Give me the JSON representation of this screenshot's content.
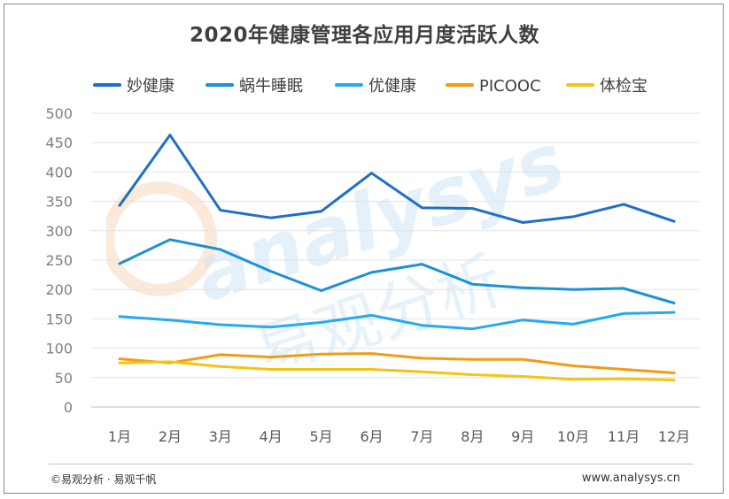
{
  "chart_data": {
    "type": "line",
    "title": "2020年健康管理各应用月度活跃人数",
    "categories": [
      "1月",
      "2月",
      "3月",
      "4月",
      "5月",
      "6月",
      "7月",
      "8月",
      "9月",
      "10月",
      "11月",
      "12月"
    ],
    "ylim": [
      0,
      500
    ],
    "yticks": [
      0,
      50,
      100,
      150,
      200,
      250,
      300,
      350,
      400,
      450,
      500
    ],
    "grid": true,
    "legend_position": "top",
    "series": [
      {
        "name": "妙健康",
        "color": "#1f6fc6",
        "values": [
          343,
          463,
          335,
          322,
          333,
          398,
          339,
          338,
          314,
          324,
          345,
          316
        ]
      },
      {
        "name": "蜗牛睡眠",
        "color": "#1b91d6",
        "values": [
          244,
          285,
          268,
          231,
          198,
          229,
          243,
          209,
          203,
          200,
          202,
          177
        ]
      },
      {
        "name": "优健康",
        "color": "#26aaf0",
        "values": [
          154,
          148,
          140,
          136,
          144,
          156,
          139,
          133,
          148,
          141,
          159,
          161
        ]
      },
      {
        "name": "PICOOC",
        "color": "#f29c13",
        "values": [
          82,
          75,
          89,
          85,
          90,
          91,
          83,
          81,
          81,
          70,
          64,
          58
        ]
      },
      {
        "name": "体检宝",
        "color": "#f5c316",
        "values": [
          75,
          77,
          69,
          64,
          64,
          64,
          60,
          55,
          52,
          47,
          48,
          46
        ]
      }
    ]
  },
  "watermark": {
    "text_en": "analysys",
    "text_cn": "易观分析",
    "color": "#cfe5f6",
    "accent": "#f8d3b4"
  },
  "footer": {
    "left": "©易观分析 · 易观千帆",
    "right": "www.analysys.cn"
  }
}
